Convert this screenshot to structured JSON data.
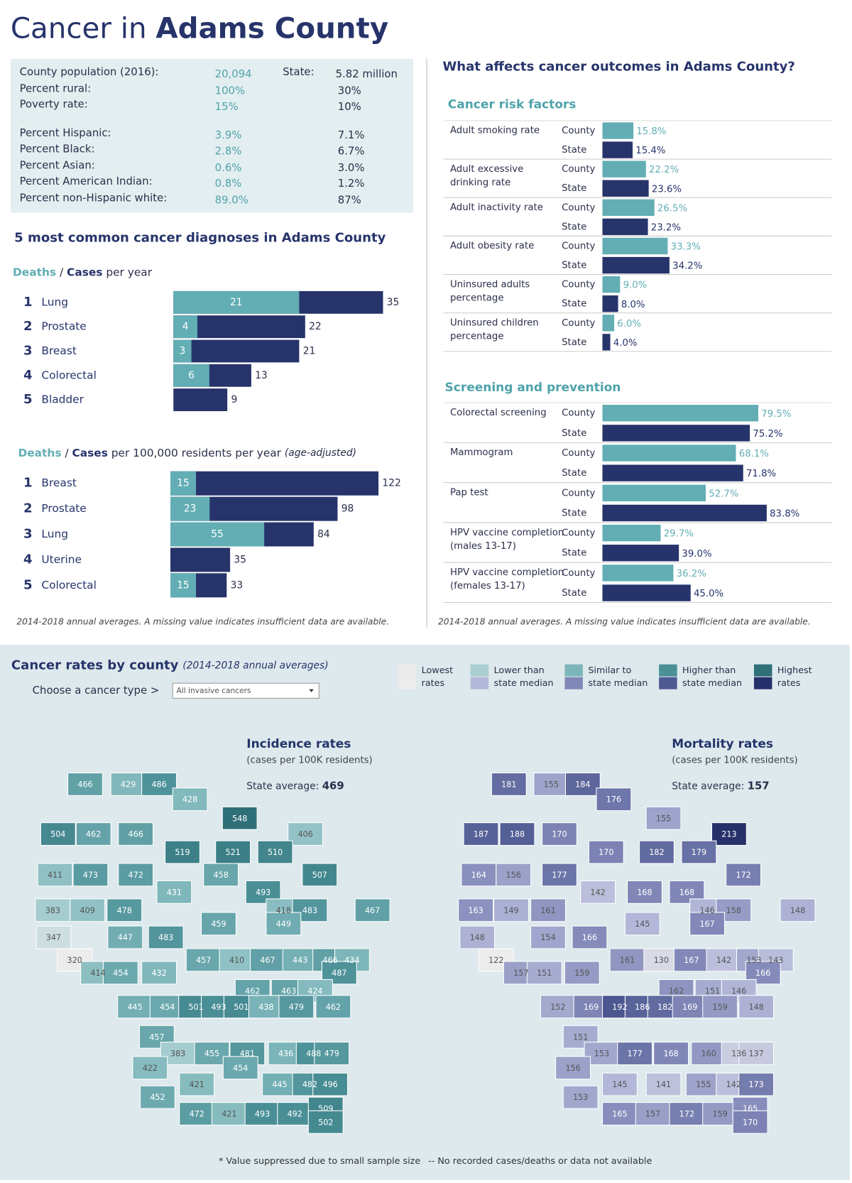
{
  "header": {
    "title_prefix": "Cancer in",
    "title_county": "Adams County"
  },
  "demographics": {
    "state_label": "State:",
    "rows": [
      [
        "County population (2016):",
        "20,094",
        "5.82 million"
      ],
      [
        "Percent rural:",
        "100%",
        "30%"
      ],
      [
        "Poverty rate:",
        "15%",
        "10%"
      ],
      [
        "Percent Hispanic:",
        "3.9%",
        "7.1%"
      ],
      [
        "Percent Black:",
        "2.8%",
        "6.7%"
      ],
      [
        "Percent Asian:",
        "0.6%",
        "3.0%"
      ],
      [
        "Percent American Indian:",
        "0.8%",
        "1.2%"
      ],
      [
        "Percent non-Hispanic white:",
        "89.0%",
        "87%"
      ]
    ]
  },
  "diagnoses_title": "5 most common cancer diagnoses in Adams County",
  "diagnoses": [
    {
      "type": "bar",
      "separator": "/",
      "subtitle_rest": "per year",
      "ranks": [
        1,
        2,
        3,
        4,
        5
      ],
      "categories": [
        "Lung",
        "Prostate",
        "Breast",
        "Colorectal",
        "Bladder"
      ],
      "series": [
        {
          "name": "Deaths",
          "color": "#62aeb4",
          "values": [
            21,
            4,
            3,
            6,
            null
          ]
        },
        {
          "name": "Cases",
          "color": "#27346b",
          "values": [
            35,
            22,
            21,
            13,
            9
          ]
        }
      ]
    },
    {
      "type": "bar",
      "separator": "/",
      "subtitle_rest": "per 100,000 residents per year",
      "subtitle_note": "(age-adjusted)",
      "ranks": [
        1,
        2,
        3,
        4,
        5
      ],
      "categories": [
        "Breast",
        "Prostate",
        "Lung",
        "Uterine",
        "Colorectal"
      ],
      "series": [
        {
          "name": "Deaths",
          "color": "#62aeb4",
          "values": [
            15,
            23,
            55,
            null,
            15
          ]
        },
        {
          "name": "Cases",
          "color": "#27346b",
          "values": [
            122,
            98,
            84,
            35,
            33
          ]
        }
      ]
    }
  ],
  "left_footnote": "2014-2018 annual averages. A missing value indicates insufficient data are available.",
  "outcomes": {
    "title": "What affects cancer outcomes in Adams County?",
    "charts": [
      {
        "type": "bar",
        "title": "Cancer risk factors",
        "categories": [
          "Adult smoking rate",
          "Adult excessive drinking rate",
          "Adult inactivity rate",
          "Adult obesity rate",
          "Uninsured adults percentage",
          "Uninsured children percentage"
        ],
        "series": [
          {
            "name": "County",
            "color": "#62aeb4",
            "values": [
              15.8,
              22.2,
              26.5,
              33.3,
              9.0,
              6.0
            ],
            "value_labels": [
              "15.8%",
              "22.2%",
              "26.5%",
              "33.3%",
              "9.0%",
              "6.0%"
            ]
          },
          {
            "name": "State",
            "color": "#27346b",
            "values": [
              15.4,
              23.6,
              23.2,
              34.2,
              8.0,
              4.0
            ],
            "value_labels": [
              "15.4%",
              "23.6%",
              "23.2%",
              "34.2%",
              "8.0%",
              "4.0%"
            ]
          }
        ]
      },
      {
        "type": "bar",
        "title": "Screening and prevention",
        "categories": [
          "Colorectal screening",
          "Mammogram",
          "Pap test",
          "HPV vaccine completion (males 13-17)",
          "HPV vaccine completion (females 13-17)"
        ],
        "series": [
          {
            "name": "County",
            "color": "#62aeb4",
            "values": [
              79.5,
              68.1,
              52.7,
              29.7,
              36.2
            ],
            "value_labels": [
              "79.5%",
              "68.1%",
              "52.7%",
              "29.7%",
              "36.2%"
            ]
          },
          {
            "name": "State",
            "color": "#27346b",
            "values": [
              75.2,
              71.8,
              83.8,
              39.0,
              45.0
            ],
            "value_labels": [
              "75.2%",
              "71.8%",
              "83.8%",
              "39.0%",
              "45.0%"
            ]
          }
        ]
      }
    ],
    "footnote": "2014-2018 annual averages. A missing value indicates insufficient data are available."
  },
  "county_maps": {
    "title": "Cancer rates by county",
    "subtitle": "(2014-2018 annual averages)",
    "selector_label": "Choose a cancer type >",
    "selector_value": "All invasive cancers",
    "legend": [
      {
        "label": "Lowest rates",
        "colors": [
          "#ececec",
          "#ececec"
        ]
      },
      {
        "label": "Lower than state median",
        "colors": [
          "#aacfd2",
          "#b4b9d9"
        ]
      },
      {
        "label": "Similar to state median",
        "colors": [
          "#7db6ba",
          "#8188b8"
        ]
      },
      {
        "label": "Higher than state median",
        "colors": [
          "#4b9097",
          "#4f5a92"
        ]
      },
      {
        "label": "Highest rates",
        "colors": [
          "#2f6f78",
          "#26306a"
        ]
      }
    ],
    "maps": [
      {
        "type": "choropleth",
        "title": "Incidence rates",
        "subtitle": "(cases per 100K residents)",
        "average_label": "State average:",
        "average": 469,
        "counties": [
          [
            466,
            429,
            486,
            428
          ],
          [
            548
          ],
          [
            504,
            462,
            466,
            406
          ],
          [
            519,
            521,
            510
          ],
          [
            411,
            473,
            472,
            458,
            507
          ],
          [
            431,
            493
          ],
          [
            383,
            409,
            478,
            418,
            483,
            467
          ],
          [
            459,
            449
          ],
          [
            347,
            447,
            483
          ],
          [
            320,
            457,
            410,
            467,
            443,
            466,
            434
          ],
          [
            414,
            454,
            432,
            487
          ],
          [
            462,
            463,
            424
          ],
          [
            445,
            454,
            501,
            493,
            501,
            438,
            479,
            462
          ],
          [
            457
          ],
          [
            383,
            455,
            481,
            436,
            488,
            479
          ],
          [
            422,
            454
          ],
          [
            421,
            445,
            482,
            496
          ],
          [
            452
          ],
          [
            472,
            421,
            493,
            492,
            509,
            502
          ]
        ]
      },
      {
        "type": "choropleth",
        "title": "Mortality rates",
        "subtitle": "(cases per 100K residents)",
        "average_label": "State average:",
        "average": 157,
        "counties": [
          [
            181,
            155,
            184,
            176
          ],
          [
            155
          ],
          [
            187,
            188,
            170,
            213
          ],
          [
            170,
            182,
            179
          ],
          [
            164,
            156,
            177,
            172
          ],
          [
            168,
            142,
            168
          ],
          [
            163,
            149,
            161,
            146,
            158,
            148
          ],
          [
            145,
            167
          ],
          [
            148,
            154,
            166
          ],
          [
            122,
            161,
            130,
            167,
            142,
            153,
            143
          ],
          [
            157,
            151,
            159,
            166
          ],
          [
            162,
            151,
            146
          ],
          [
            152,
            169,
            192,
            186,
            182,
            169,
            159,
            148
          ],
          [
            151
          ],
          [
            153,
            177,
            168,
            160,
            136,
            137
          ],
          [
            156
          ],
          [
            145,
            141,
            155,
            142,
            173
          ],
          [
            153
          ],
          [
            165,
            157,
            172,
            159,
            165,
            170
          ]
        ]
      }
    ],
    "footnotes": [
      "* Value suppressed due to small sample size",
      "-- No recorded cases/deaths or data not available"
    ]
  }
}
